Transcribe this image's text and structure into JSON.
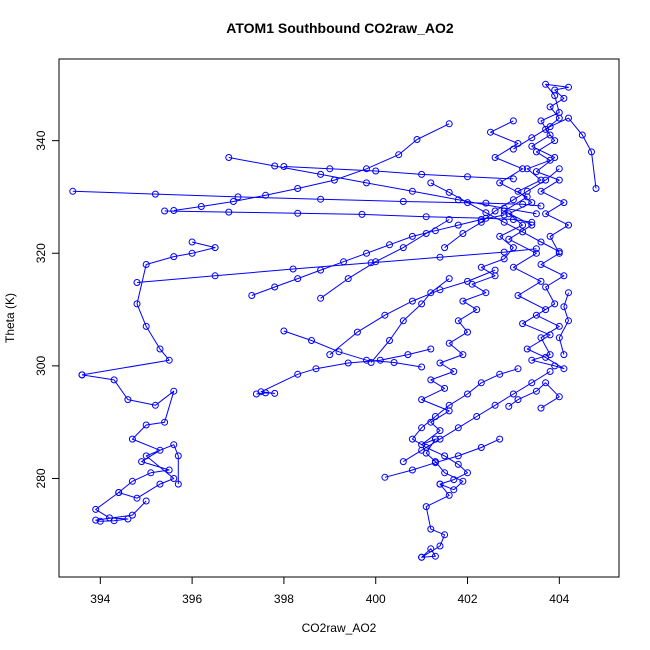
{
  "chart_data": {
    "type": "line",
    "title": "ATOM1 Southbound CO2raw_AO2",
    "xlabel": "CO2raw_AO2",
    "ylabel": "Theta (K)",
    "xlim": [
      393.1,
      405.3
    ],
    "ylim": [
      262.5,
      354.5
    ],
    "x_ticks": [
      394,
      396,
      398,
      400,
      402,
      404
    ],
    "y_ticks": [
      280,
      300,
      320,
      340
    ],
    "grid": false,
    "markers": "open-circle",
    "color": "#0000ff",
    "series": [
      {
        "points": [
          [
            401.0,
            266.0
          ],
          [
            401.3,
            266.2
          ],
          [
            401.2,
            267.5
          ],
          [
            401.0,
            266.0
          ],
          [
            401.4,
            268.0
          ],
          [
            401.5,
            270.0
          ],
          [
            401.2,
            271.0
          ],
          [
            401.1,
            275.0
          ],
          [
            401.6,
            277.0
          ],
          [
            401.4,
            279.0
          ],
          [
            401.7,
            278.0
          ],
          [
            401.9,
            279.5
          ],
          [
            401.5,
            281.0
          ],
          [
            401.3,
            283.0
          ],
          [
            401.1,
            284.5
          ],
          [
            401.3,
            287.0
          ],
          [
            401.0,
            286.0
          ],
          [
            401.4,
            288.5
          ],
          [
            401.2,
            290.0
          ],
          [
            401.6,
            292.0
          ],
          [
            401.0,
            294.0
          ],
          [
            401.5,
            296.0
          ],
          [
            401.2,
            297.5
          ],
          [
            401.7,
            299.0
          ],
          [
            401.4,
            300.5
          ],
          [
            401.9,
            302.0
          ],
          [
            401.6,
            304.0
          ],
          [
            402.0,
            306.0
          ],
          [
            401.8,
            308.0
          ],
          [
            402.2,
            310.0
          ],
          [
            401.9,
            311.5
          ],
          [
            402.4,
            313.0
          ],
          [
            402.1,
            314.5
          ],
          [
            402.6,
            316.0
          ],
          [
            402.3,
            317.5
          ],
          [
            402.8,
            319.0
          ],
          [
            403.0,
            321.0
          ],
          [
            402.7,
            323.0
          ],
          [
            403.2,
            325.0
          ],
          [
            402.9,
            327.0
          ],
          [
            403.4,
            329.0
          ],
          [
            403.1,
            331.0
          ],
          [
            403.6,
            333.0
          ],
          [
            403.3,
            335.0
          ],
          [
            403.8,
            336.5
          ],
          [
            403.5,
            338.0
          ],
          [
            403.9,
            340.0
          ],
          [
            403.7,
            342.0
          ],
          [
            404.0,
            344.0
          ],
          [
            403.8,
            346.0
          ],
          [
            404.1,
            347.5
          ],
          [
            403.9,
            349.0
          ],
          [
            404.2,
            349.5
          ],
          [
            403.7,
            350.0
          ],
          [
            403.9,
            348.0
          ],
          [
            404.0,
            345.0
          ],
          [
            403.6,
            343.5
          ],
          [
            403.8,
            341.0
          ],
          [
            403.4,
            339.0
          ],
          [
            403.9,
            337.0
          ],
          [
            403.5,
            334.5
          ],
          [
            404.0,
            333.0
          ],
          [
            403.6,
            331.0
          ],
          [
            404.1,
            329.0
          ],
          [
            403.7,
            327.0
          ],
          [
            404.2,
            325.0
          ],
          [
            403.8,
            323.0
          ],
          [
            404.0,
            320.0
          ],
          [
            403.6,
            318.0
          ],
          [
            404.1,
            316.0
          ],
          [
            403.7,
            314.0
          ],
          [
            403.9,
            311.0
          ],
          [
            403.5,
            309.0
          ],
          [
            404.0,
            307.0
          ],
          [
            403.6,
            305.0
          ],
          [
            403.8,
            302.0
          ],
          [
            403.4,
            301.0
          ],
          [
            403.9,
            300.0
          ],
          [
            404.1,
            299.5
          ],
          [
            403.7,
            301.5
          ],
          [
            403.3,
            303.0
          ],
          [
            403.8,
            305.5
          ],
          [
            403.2,
            307.5
          ],
          [
            403.7,
            310.0
          ],
          [
            403.1,
            312.5
          ],
          [
            403.6,
            315.0
          ],
          [
            403.0,
            317.5
          ],
          [
            403.5,
            320.0
          ],
          [
            402.9,
            322.5
          ],
          [
            403.4,
            325.0
          ],
          [
            402.8,
            327.5
          ],
          [
            403.3,
            330.0
          ],
          [
            402.7,
            332.5
          ],
          [
            403.2,
            335.0
          ],
          [
            402.6,
            337.0
          ],
          [
            403.1,
            339.5
          ],
          [
            402.5,
            341.5
          ],
          [
            403.0,
            343.5
          ]
        ]
      },
      {
        "points": [
          [
            393.4,
            331.0
          ],
          [
            395.2,
            330.5
          ],
          [
            397.0,
            330.0
          ],
          [
            398.8,
            329.6
          ],
          [
            400.6,
            329.2
          ],
          [
            402.4,
            328.9
          ],
          [
            403.2,
            328.7
          ],
          [
            403.6,
            328.4
          ]
        ]
      },
      {
        "points": [
          [
            395.4,
            327.5
          ],
          [
            396.8,
            327.3
          ],
          [
            398.3,
            327.1
          ],
          [
            399.7,
            326.9
          ],
          [
            401.1,
            326.5
          ],
          [
            402.4,
            326.2
          ],
          [
            403.0,
            326.0
          ],
          [
            403.4,
            325.5
          ]
        ]
      },
      {
        "points": [
          [
            394.8,
            314.8
          ],
          [
            396.5,
            316.0
          ],
          [
            398.2,
            317.2
          ],
          [
            399.9,
            318.3
          ],
          [
            401.4,
            319.3
          ],
          [
            402.8,
            320.2
          ],
          [
            403.5,
            320.8
          ]
        ]
      },
      {
        "points": [
          [
            401.6,
            343.0
          ],
          [
            400.9,
            340.2
          ],
          [
            400.5,
            337.5
          ],
          [
            399.8,
            335.0
          ],
          [
            399.1,
            333.0
          ],
          [
            398.3,
            331.5
          ],
          [
            397.6,
            330.3
          ],
          [
            396.9,
            329.2
          ],
          [
            396.2,
            328.3
          ],
          [
            395.6,
            327.6
          ]
        ]
      },
      {
        "points": [
          [
            396.8,
            337.0
          ],
          [
            397.8,
            335.5
          ],
          [
            398.8,
            334.0
          ],
          [
            399.8,
            332.5
          ],
          [
            400.8,
            331.0
          ],
          [
            401.8,
            329.5
          ],
          [
            402.8,
            328.0
          ],
          [
            403.5,
            327.0
          ]
        ]
      },
      {
        "points": [
          [
            398.0,
            335.4
          ],
          [
            399.0,
            335.0
          ],
          [
            400.0,
            334.6
          ],
          [
            401.0,
            334.0
          ],
          [
            402.0,
            333.6
          ],
          [
            403.0,
            333.2
          ]
        ]
      },
      {
        "points": [
          [
            397.3,
            312.5
          ],
          [
            397.8,
            314.0
          ],
          [
            398.3,
            315.5
          ],
          [
            398.8,
            317.0
          ],
          [
            399.3,
            318.5
          ],
          [
            399.8,
            320.0
          ],
          [
            400.3,
            321.5
          ],
          [
            400.8,
            323.0
          ],
          [
            401.3,
            324.0
          ],
          [
            401.8,
            325.0
          ],
          [
            402.3,
            326.0
          ],
          [
            402.8,
            326.8
          ]
        ]
      },
      {
        "points": [
          [
            396.0,
            322.0
          ],
          [
            396.5,
            321.0
          ],
          [
            396.0,
            320.0
          ],
          [
            395.6,
            319.4
          ],
          [
            395.0,
            318.0
          ],
          [
            394.8,
            311.0
          ],
          [
            395.0,
            307.0
          ],
          [
            395.3,
            303.0
          ],
          [
            395.5,
            301.0
          ],
          [
            393.6,
            298.4
          ]
        ]
      },
      {
        "points": [
          [
            393.6,
            298.4
          ],
          [
            394.3,
            297.5
          ],
          [
            394.6,
            294.0
          ],
          [
            395.2,
            293.0
          ],
          [
            395.6,
            295.5
          ],
          [
            395.4,
            290.0
          ],
          [
            395.0,
            289.5
          ],
          [
            394.7,
            287.0
          ],
          [
            395.3,
            285.0
          ],
          [
            394.9,
            283.0
          ],
          [
            395.5,
            281.5
          ],
          [
            395.1,
            281.0
          ],
          [
            394.7,
            279.5
          ],
          [
            394.4,
            277.5
          ],
          [
            394.8,
            276.5
          ],
          [
            395.3,
            279.0
          ],
          [
            395.6,
            280.0
          ],
          [
            395.0,
            284.0
          ],
          [
            395.6,
            286.0
          ],
          [
            395.7,
            284.0
          ],
          [
            395.7,
            279.0
          ]
        ]
      },
      {
        "points": [
          [
            394.4,
            277.5
          ],
          [
            393.9,
            274.5
          ],
          [
            394.2,
            273.0
          ],
          [
            394.6,
            272.8
          ],
          [
            394.3,
            272.5
          ],
          [
            394.0,
            272.4
          ],
          [
            393.9,
            272.6
          ],
          [
            394.7,
            273.5
          ],
          [
            395.0,
            276.0
          ]
        ]
      },
      {
        "points": [
          [
            397.4,
            295.0
          ],
          [
            397.6,
            295.2
          ],
          [
            397.8,
            295.1
          ],
          [
            397.5,
            295.4
          ],
          [
            398.3,
            298.5
          ],
          [
            398.7,
            299.5
          ],
          [
            399.4,
            300.5
          ],
          [
            400.1,
            301.0
          ],
          [
            400.7,
            302.0
          ],
          [
            401.2,
            303.0
          ]
        ]
      },
      {
        "points": [
          [
            398.0,
            306.2
          ],
          [
            398.6,
            304.5
          ],
          [
            399.2,
            302.5
          ],
          [
            399.8,
            301.0
          ],
          [
            400.4,
            300.6
          ],
          [
            401.0,
            299.8
          ]
        ]
      },
      {
        "points": [
          [
            398.8,
            312.0
          ],
          [
            399.4,
            315.5
          ],
          [
            400.0,
            318.5
          ],
          [
            400.6,
            321.0
          ],
          [
            401.1,
            323.5
          ],
          [
            401.6,
            326.0
          ]
        ]
      },
      {
        "points": [
          [
            399.0,
            302.0
          ],
          [
            399.6,
            306.0
          ],
          [
            400.2,
            309.0
          ],
          [
            400.8,
            311.5
          ],
          [
            401.4,
            313.5
          ],
          [
            402.0,
            315.0
          ],
          [
            402.6,
            317.0
          ]
        ]
      },
      {
        "points": [
          [
            399.9,
            300.6
          ],
          [
            400.3,
            304.5
          ],
          [
            400.6,
            308.0
          ],
          [
            401.0,
            311.0
          ],
          [
            401.2,
            313.0
          ],
          [
            401.6,
            315.5
          ]
        ]
      },
      {
        "points": [
          [
            400.6,
            283.0
          ],
          [
            401.0,
            285.0
          ],
          [
            401.4,
            287.0
          ],
          [
            401.8,
            289.0
          ],
          [
            402.2,
            291.0
          ],
          [
            402.6,
            293.0
          ],
          [
            403.0,
            295.0
          ],
          [
            403.4,
            297.0
          ],
          [
            403.8,
            299.0
          ]
        ]
      },
      {
        "points": [
          [
            400.2,
            280.2
          ],
          [
            400.8,
            281.5
          ],
          [
            401.3,
            282.8
          ],
          [
            401.8,
            284.0
          ],
          [
            402.3,
            285.5
          ],
          [
            402.7,
            287.0
          ]
        ]
      },
      {
        "points": [
          [
            401.4,
            279.0
          ],
          [
            401.7,
            279.8
          ],
          [
            402.0,
            281.0
          ],
          [
            401.8,
            282.5
          ],
          [
            401.5,
            284.0
          ],
          [
            401.1,
            285.5
          ],
          [
            400.8,
            287.0
          ],
          [
            401.0,
            289.0
          ],
          [
            401.3,
            291.0
          ],
          [
            401.6,
            293.0
          ],
          [
            402.0,
            295.0
          ],
          [
            402.3,
            297.0
          ],
          [
            402.7,
            298.5
          ],
          [
            403.1,
            299.5
          ]
        ]
      },
      {
        "points": [
          [
            402.9,
            292.8
          ],
          [
            403.1,
            294.0
          ],
          [
            403.5,
            295.5
          ],
          [
            403.7,
            297.0
          ],
          [
            404.0,
            294.5
          ],
          [
            403.6,
            292.5
          ]
        ]
      },
      {
        "points": [
          [
            401.2,
            332.5
          ],
          [
            401.6,
            330.8
          ],
          [
            402.0,
            329.0
          ],
          [
            402.4,
            327.2
          ],
          [
            402.8,
            325.5
          ],
          [
            403.2,
            323.8
          ],
          [
            403.6,
            322.0
          ],
          [
            404.0,
            320.3
          ]
        ]
      },
      {
        "points": [
          [
            401.5,
            321.0
          ],
          [
            401.9,
            323.5
          ],
          [
            402.3,
            325.5
          ],
          [
            402.6,
            327.5
          ],
          [
            403.0,
            329.5
          ],
          [
            403.3,
            331.0
          ],
          [
            403.7,
            333.0
          ],
          [
            404.0,
            335.0
          ]
        ]
      },
      {
        "points": [
          [
            403.0,
            338.5
          ],
          [
            403.4,
            340.5
          ],
          [
            403.8,
            342.5
          ],
          [
            404.2,
            344.0
          ],
          [
            404.5,
            341.0
          ],
          [
            404.7,
            338.0
          ],
          [
            404.8,
            331.5
          ]
        ]
      },
      {
        "points": [
          [
            404.2,
            313.0
          ],
          [
            404.1,
            310.5
          ],
          [
            404.2,
            308.0
          ],
          [
            404.0,
            305.0
          ],
          [
            404.1,
            302.0
          ]
        ]
      }
    ]
  }
}
